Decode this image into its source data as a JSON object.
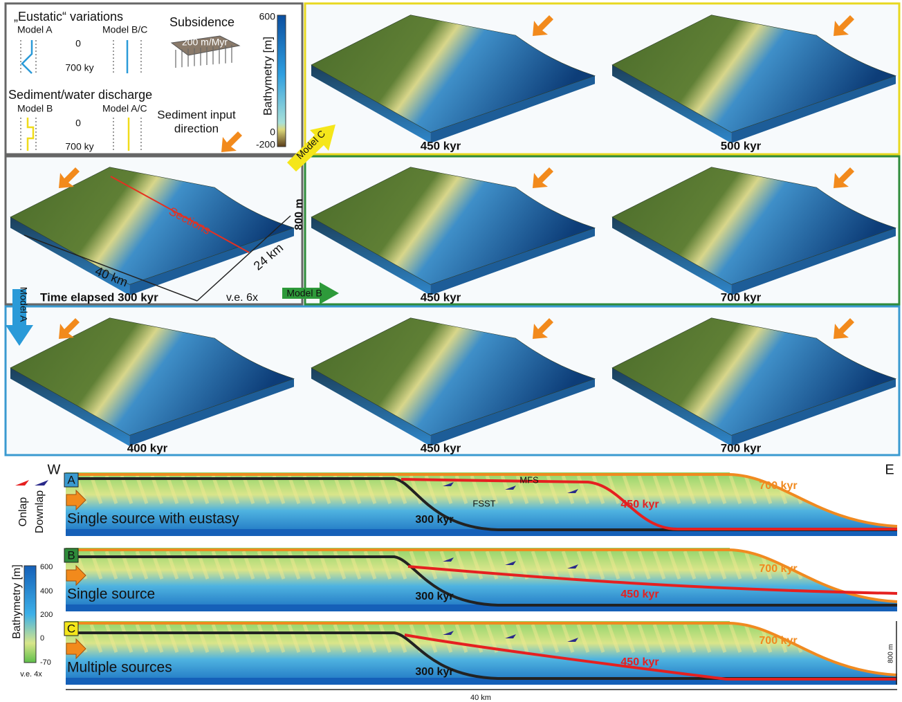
{
  "legend": {
    "eustatic_title": "„Eustatic“ variations",
    "eustatic_model_a": "Model A",
    "eustatic_model_bc": "Model B/C",
    "eustatic_start": "0",
    "eustatic_end": "700 ky",
    "subsidence_title": "Subsidence",
    "subsidence_rate": "200 m/Myr",
    "discharge_title": "Sediment/water discharge",
    "discharge_model_b": "Model B",
    "discharge_model_ac": "Model A/C",
    "discharge_start": "0",
    "discharge_end": "700 ky",
    "sediment_input": [
      "Sediment input",
      "direction"
    ]
  },
  "bathymetry_bar": {
    "title": "Bathymetry [m]",
    "ticks": [
      "600",
      "0",
      "-200"
    ]
  },
  "model_c": {
    "label": "Model C",
    "panels": [
      "450 kyr",
      "500 kyr"
    ]
  },
  "reference": {
    "sections_label": "Sections",
    "height": "800 m",
    "length": "40 km",
    "width": "24 km",
    "time": "Time elapsed 300 kyr",
    "exaggeration": "v.e. 6x"
  },
  "model_b": {
    "label": "Model B",
    "panels": [
      "450 kyr",
      "700 kyr"
    ]
  },
  "model_a": {
    "label": "Model A",
    "panels": [
      "400 kyr",
      "450 kyr",
      "700 kyr"
    ]
  },
  "sections": {
    "west": "W",
    "east": "E",
    "onlap": "Onlap",
    "downlap": "Downlap",
    "colorbar": {
      "title": "Bathymetry [m]",
      "ticks": [
        "600",
        "400",
        "200",
        "0",
        "-70"
      ],
      "exaggeration": "v.e. 4x"
    },
    "rows": [
      {
        "letter": "A",
        "description": "Single source with eustasy",
        "labels": [
          "300 kyr",
          "450 kyr",
          "700 kyr"
        ],
        "mfs": "MFS",
        "fsst": "FSST"
      },
      {
        "letter": "B",
        "description": "Single source",
        "labels": [
          "300 kyr",
          "450 kyr",
          "700 kyr"
        ]
      },
      {
        "letter": "C",
        "description": "Multiple sources",
        "labels": [
          "300 kyr",
          "450 kyr",
          "700 kyr"
        ]
      }
    ],
    "scale_height": "800 m",
    "scale_length": "40 km"
  }
}
